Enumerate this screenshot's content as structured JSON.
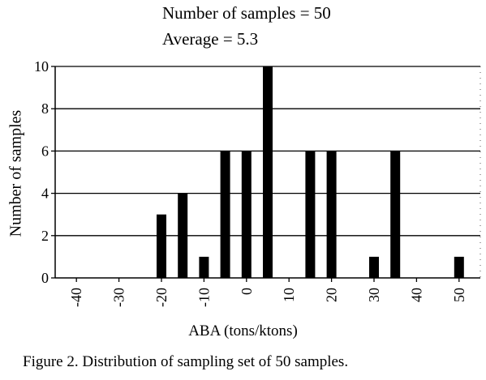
{
  "annotations": [
    "Number of samples = 50",
    "Average = 5.3"
  ],
  "caption": "Figure 2.  Distribution of sampling set of 50 samples.",
  "colors": {
    "bar": "#000000",
    "grid": "#000000",
    "background": "#ffffff"
  },
  "chart_data": {
    "type": "bar",
    "title": "",
    "xlabel": "ABA (tons/ktons)",
    "ylabel": "Number of samples",
    "x": [
      -40,
      -35,
      -30,
      -25,
      -20,
      -15,
      -10,
      -5,
      0,
      5,
      10,
      15,
      20,
      25,
      30,
      35,
      40,
      45,
      50
    ],
    "values": [
      0,
      0,
      0,
      0,
      3,
      4,
      1,
      6,
      6,
      10,
      0,
      6,
      6,
      0,
      1,
      6,
      0,
      0,
      1
    ],
    "x_tick_labels": [
      "-40",
      "-30",
      "-20",
      "-10",
      "0",
      "10",
      "20",
      "30",
      "40",
      "50"
    ],
    "x_tick_values": [
      -40,
      -30,
      -20,
      -10,
      0,
      10,
      20,
      30,
      40,
      50
    ],
    "y_tick_labels": [
      "0",
      "2",
      "4",
      "6",
      "8",
      "10"
    ],
    "y_tick_values": [
      0,
      2,
      4,
      6,
      8,
      10
    ],
    "xlim": [
      -45,
      55
    ],
    "ylim": [
      0,
      10
    ],
    "grid": "horizontal",
    "legend": "none"
  }
}
